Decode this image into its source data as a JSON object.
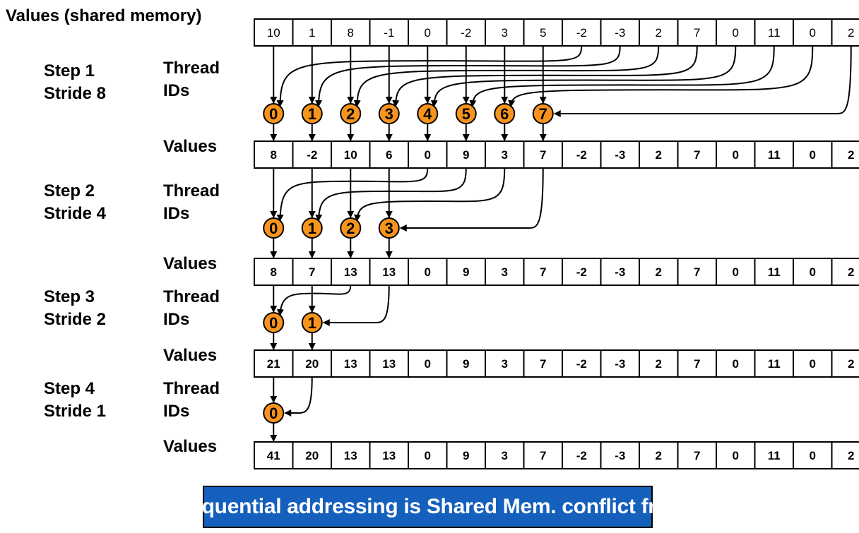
{
  "title": "Values (shared memory)",
  "initial_values": [
    "10",
    "1",
    "8",
    "-1",
    "0",
    "-2",
    "3",
    "5",
    "-2",
    "-3",
    "2",
    "7",
    "0",
    "11",
    "0",
    "2"
  ],
  "thread_ids_label": [
    "Thread",
    "IDs"
  ],
  "values_label": "Values",
  "steps": [
    {
      "label_lines": [
        "Step 1",
        "Stride 8"
      ],
      "stride": 8,
      "thread_ids": [
        "0",
        "1",
        "2",
        "3",
        "4",
        "5",
        "6",
        "7"
      ],
      "values": [
        "8",
        "-2",
        "10",
        "6",
        "0",
        "9",
        "3",
        "7",
        "-2",
        "-3",
        "2",
        "7",
        "0",
        "11",
        "0",
        "2"
      ]
    },
    {
      "label_lines": [
        "Step 2",
        "Stride 4"
      ],
      "stride": 4,
      "thread_ids": [
        "0",
        "1",
        "2",
        "3"
      ],
      "values": [
        "8",
        "7",
        "13",
        "13",
        "0",
        "9",
        "3",
        "7",
        "-2",
        "-3",
        "2",
        "7",
        "0",
        "11",
        "0",
        "2"
      ]
    },
    {
      "label_lines": [
        "Step 3",
        "Stride 2"
      ],
      "stride": 2,
      "thread_ids": [
        "0",
        "1"
      ],
      "values": [
        "21",
        "20",
        "13",
        "13",
        "0",
        "9",
        "3",
        "7",
        "-2",
        "-3",
        "2",
        "7",
        "0",
        "11",
        "0",
        "2"
      ]
    },
    {
      "label_lines": [
        "Step 4",
        "Stride 1"
      ],
      "stride": 1,
      "thread_ids": [
        "0"
      ],
      "values": [
        "41",
        "20",
        "13",
        "13",
        "0",
        "9",
        "3",
        "7",
        "-2",
        "-3",
        "2",
        "7",
        "0",
        "11",
        "0",
        "2"
      ]
    }
  ],
  "banner": "Sequential addressing is Shared Mem. conflict free",
  "colors": {
    "thread_fill": "#f7941d",
    "banner_bg": "#1560bd",
    "banner_text": "#ffffff"
  }
}
